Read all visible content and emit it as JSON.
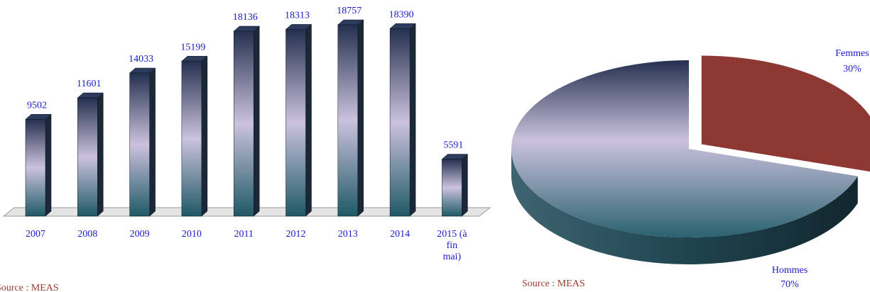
{
  "chart_data": [
    {
      "type": "bar",
      "categories": [
        "2007",
        "2008",
        "2009",
        "2010",
        "2011",
        "2012",
        "2013",
        "2014",
        "2015 (à fin mai)"
      ],
      "values": [
        9502,
        11601,
        14033,
        15199,
        18136,
        18313,
        18757,
        18390,
        5591
      ],
      "label_color": "#1a1acc",
      "source": "Source : MEAS"
    },
    {
      "type": "pie",
      "categories": [
        "Femmes",
        "Hommes"
      ],
      "values": [
        30,
        70
      ],
      "value_labels": [
        "30%",
        "70%"
      ],
      "colors": [
        "#8e3834",
        "#6a7fa0"
      ],
      "source": "Source : MEAS"
    }
  ]
}
